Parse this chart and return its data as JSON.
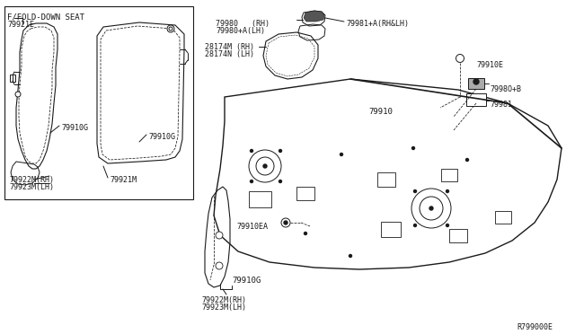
{
  "bg_color": "#ffffff",
  "dc": "#1a1a1a",
  "ref_code": "R799000E",
  "labels": {
    "fold_seat": "F/FOLD-DOWN SEAT",
    "p79921E": "79921E",
    "p79910G_1": "79910G",
    "p79910G_2": "79910G",
    "p79922M_1": "79922M(RH)",
    "p79923M_1": "79923M(LH)",
    "p79921M": "79921M",
    "p79980": "79980   (RH)",
    "p79980A": "79980+A(LH)",
    "p79981A": "79981+A(RH&LH)",
    "p28174M": "28174M (RH)",
    "p28174N": "28174N (LH)",
    "p79910": "79910",
    "p79910E": "79910E",
    "p79980B": "7998O+B",
    "p79981": "79981",
    "p79910EA": "79910EA",
    "p79910G_3": "79910G",
    "p79922M_2": "79922M(RH)",
    "p79923M_2": "79923M(LH)"
  },
  "fs": 6.0,
  "fl": 6.5,
  "lw": 0.7
}
